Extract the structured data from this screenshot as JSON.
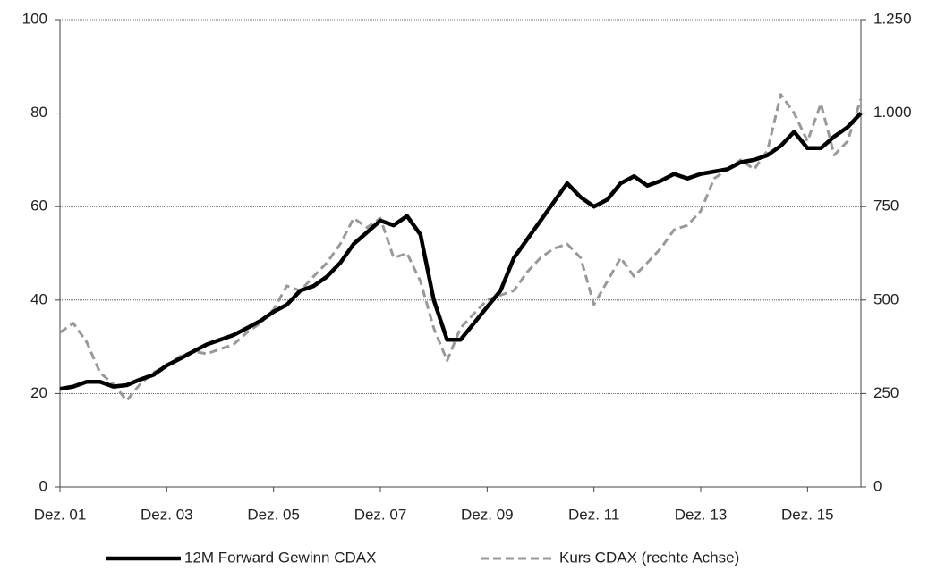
{
  "chart_data": {
    "type": "line",
    "categories": [
      "Dez. 01",
      null,
      null,
      null,
      null,
      null,
      null,
      null,
      "Dez. 03",
      null,
      null,
      null,
      null,
      null,
      null,
      null,
      "Dez. 05",
      null,
      null,
      null,
      null,
      null,
      null,
      null,
      "Dez. 07",
      null,
      null,
      null,
      null,
      null,
      null,
      null,
      "Dez. 09",
      null,
      null,
      null,
      null,
      null,
      null,
      null,
      "Dez. 11",
      null,
      null,
      null,
      null,
      null,
      null,
      null,
      "Dez. 13",
      null,
      null,
      null,
      null,
      null,
      null,
      null,
      "Dez. 15",
      null,
      null,
      null,
      null
    ],
    "series": [
      {
        "name": "12M Forward Gewinn CDAX",
        "color": "#000000",
        "dashed": false,
        "axis": "y",
        "values": [
          21,
          21.5,
          22.5,
          22.5,
          21.5,
          21.8,
          23,
          24,
          26,
          27.5,
          29,
          30.5,
          31.5,
          32.5,
          34,
          35.5,
          37.5,
          39,
          42,
          43,
          45,
          48,
          52,
          54.5,
          57,
          56,
          58,
          54,
          40,
          31.5,
          31.5,
          35,
          38.5,
          42,
          49,
          53,
          57,
          61,
          65,
          62,
          60,
          61.5,
          65,
          66.5,
          64.5,
          65.5,
          67,
          66,
          67,
          67.5,
          68,
          69.5,
          70,
          71,
          73,
          76,
          72.5,
          72.5,
          75,
          77,
          80
        ]
      },
      {
        "name": "Kurs CDAX (rechte Achse)",
        "color": "#999999",
        "dashed": true,
        "axis": "y2",
        "values": [
          413,
          438,
          388,
          306,
          275,
          231,
          275,
          306,
          325,
          350,
          363,
          356,
          369,
          381,
          413,
          438,
          475,
          538,
          525,
          563,
          600,
          650,
          719,
          694,
          719,
          613,
          625,
          550,
          425,
          338,
          425,
          463,
          500,
          513,
          525,
          575,
          613,
          638,
          650,
          613,
          488,
          550,
          613,
          563,
          600,
          638,
          688,
          700,
          738,
          825,
          850,
          875,
          850,
          900,
          1050,
          1000,
          925,
          1025,
          888,
          925,
          1038
        ]
      }
    ],
    "ylim": [
      0,
      100
    ],
    "yticks": [
      0,
      20,
      40,
      60,
      80,
      100
    ],
    "y2lim": [
      0,
      1250
    ],
    "y2ticks": [
      0,
      250,
      500,
      750,
      {
        "value": 1000,
        "label": "1.000"
      },
      {
        "value": 1250,
        "label": "1.250"
      }
    ],
    "grid": true,
    "legend": "bottom"
  }
}
